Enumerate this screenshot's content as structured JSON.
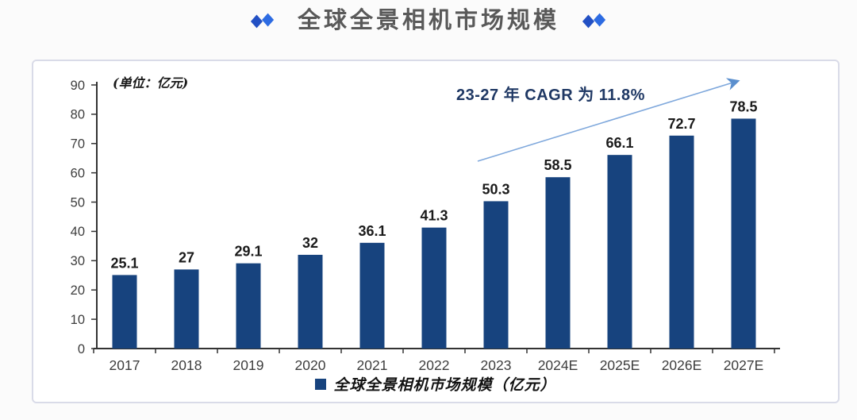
{
  "header": {
    "title": "全球全景相机市场规模",
    "title_color": "#595959",
    "diamond_colors": [
      "#2250c4",
      "#2d6be2"
    ]
  },
  "chart_data": {
    "type": "bar",
    "title": "全球全景相机市场规模",
    "unit_label": "(单位：亿元)",
    "categories": [
      "2017",
      "2018",
      "2019",
      "2020",
      "2021",
      "2022",
      "2023",
      "2024E",
      "2025E",
      "2026E",
      "2027E"
    ],
    "values": [
      25.1,
      27,
      29.1,
      32,
      36.1,
      41.3,
      50.3,
      58.5,
      66.1,
      72.7,
      78.5
    ],
    "labels": [
      "25.1",
      "27",
      "29.1",
      "32",
      "36.1",
      "41.3",
      "50.3",
      "58.5",
      "66.1",
      "72.7",
      "78.5"
    ],
    "ylim": [
      0,
      90
    ],
    "yticks": [
      0,
      10,
      20,
      30,
      40,
      50,
      60,
      70,
      80,
      90
    ],
    "ytick_step": 10,
    "grid": false,
    "xlabel": "",
    "ylabel": "",
    "bar_color": "#17437e",
    "axis_color": "#333333",
    "annotation": {
      "text": "23-27 年 CAGR 为 11.8%",
      "color": "#1f3864"
    },
    "arrow_color": "#7fa8dc",
    "arrowhead_color": "#5b8fce",
    "legend": {
      "label": "全球全景相机市场规模（亿元）",
      "marker_color": "#17437e",
      "position": "bottom"
    }
  }
}
